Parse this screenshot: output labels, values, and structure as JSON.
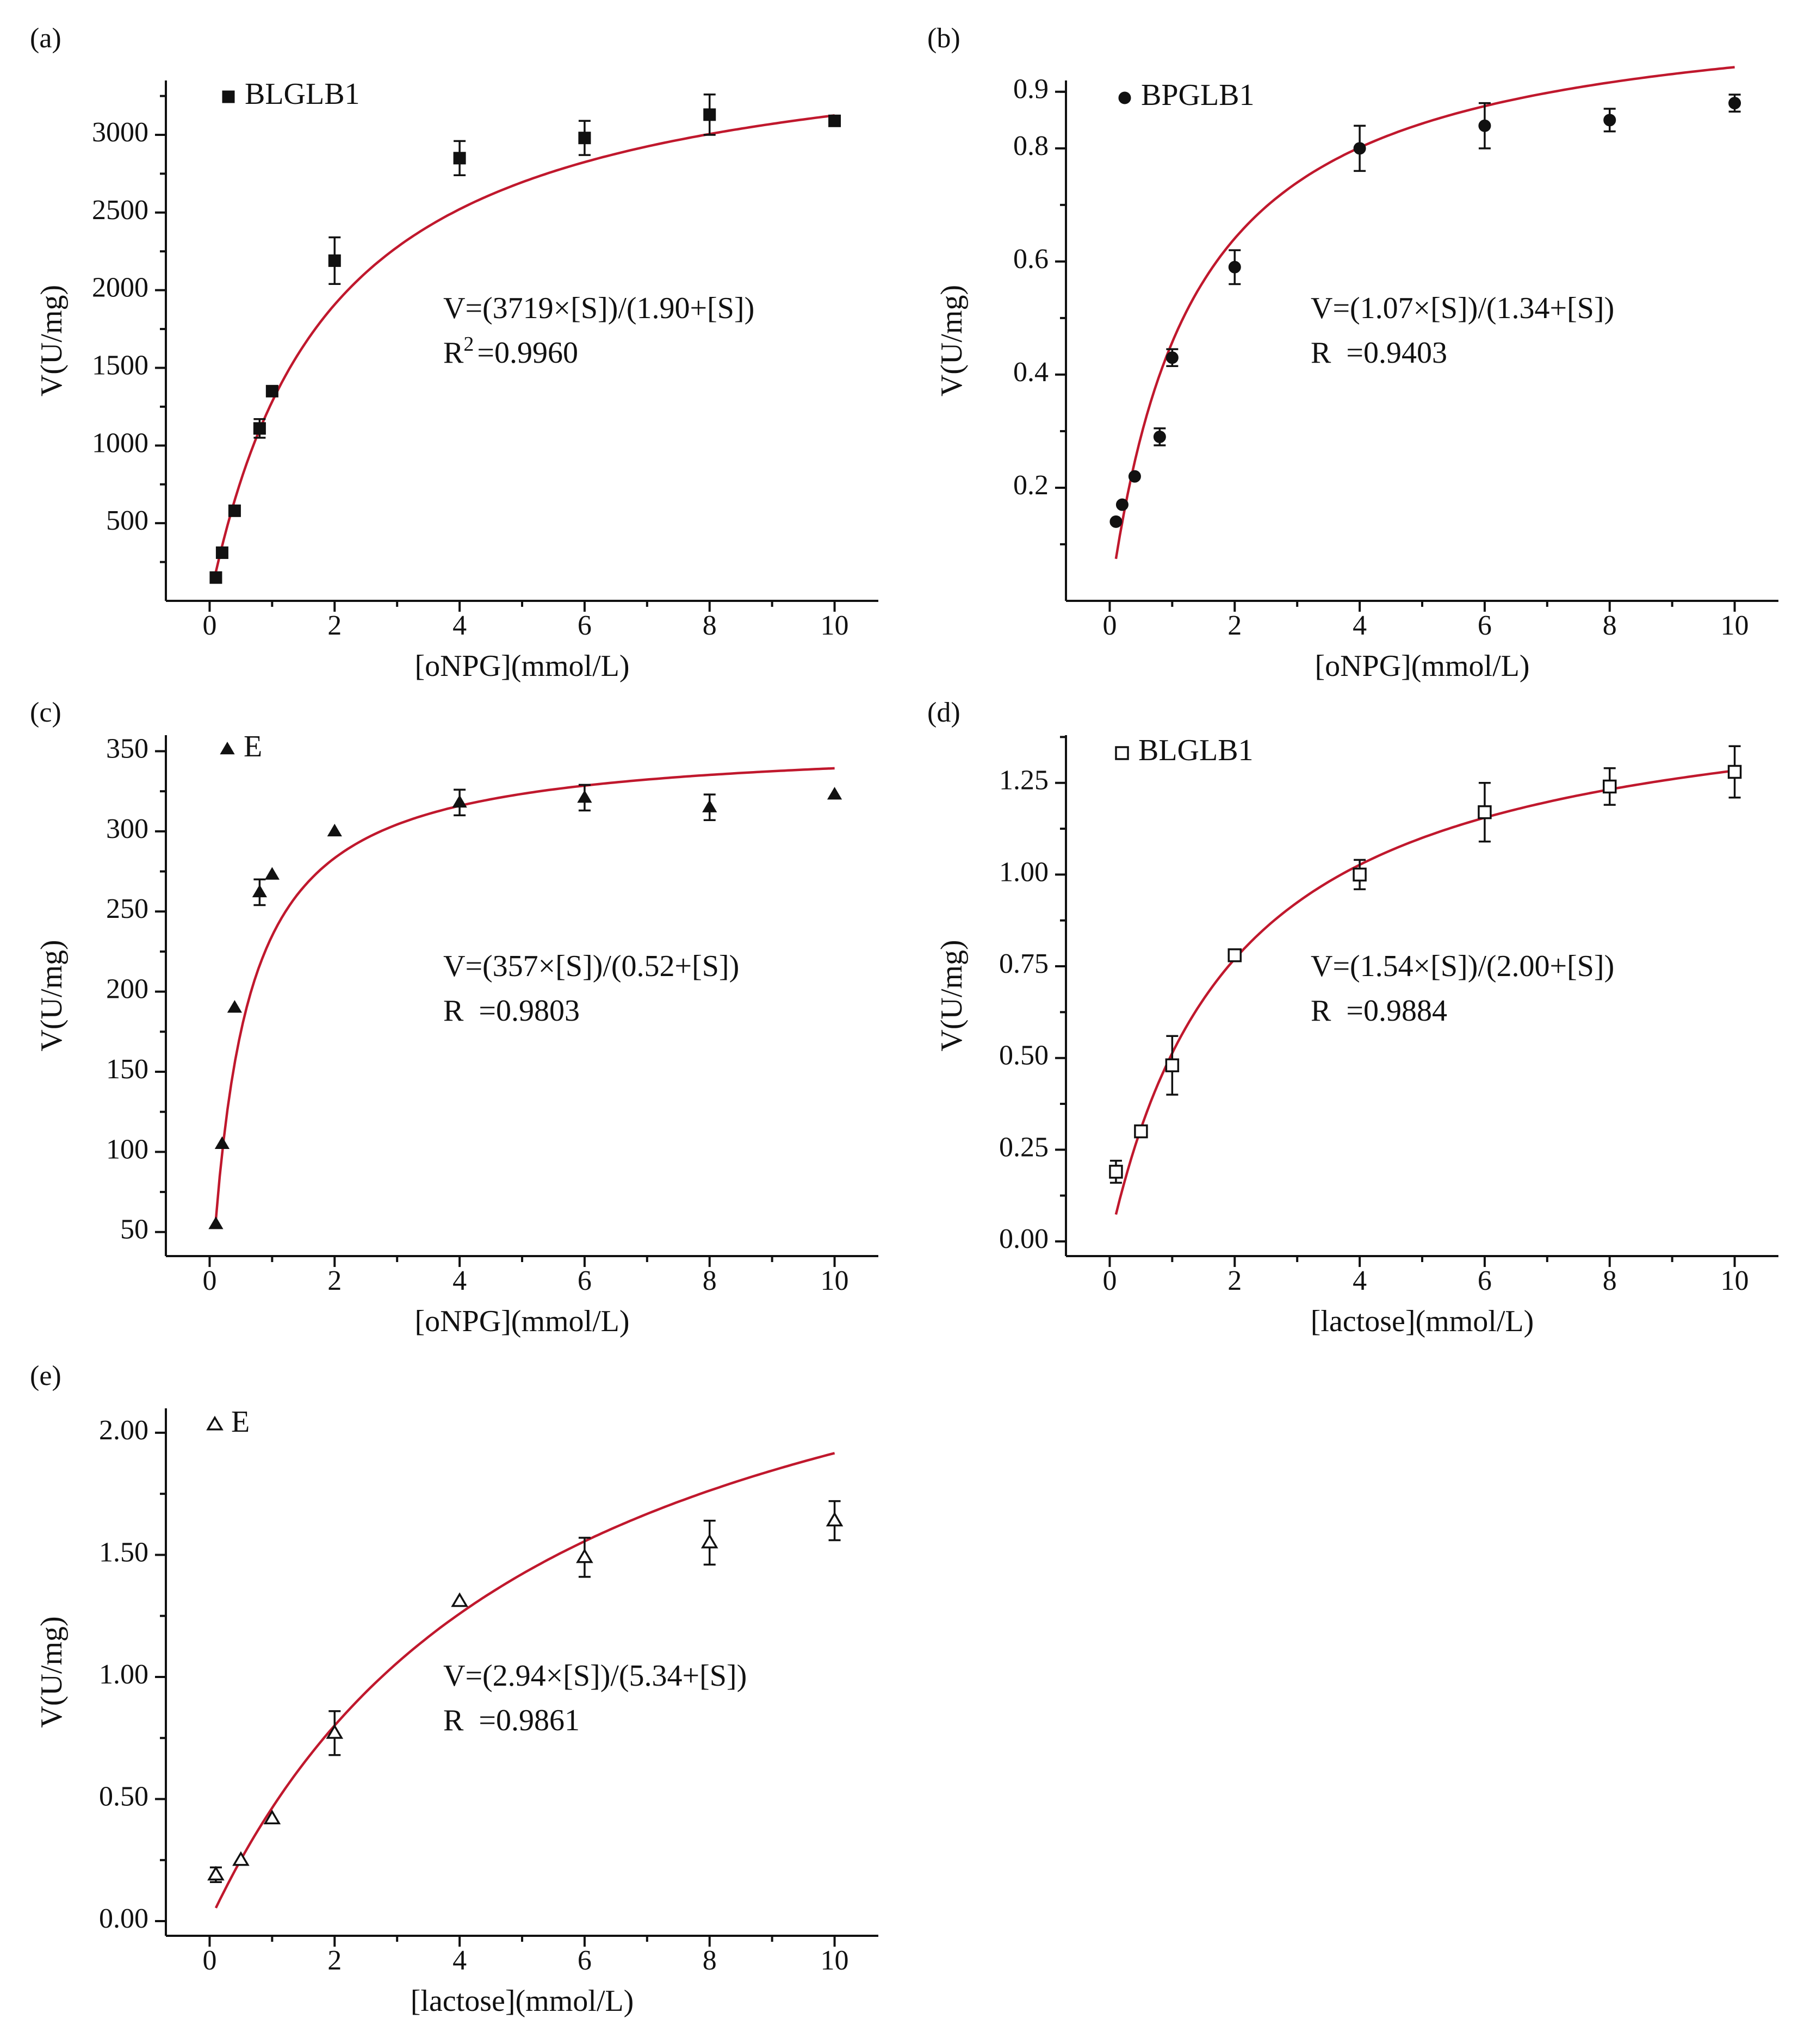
{
  "figure": {
    "background": "#ffffff",
    "ink": "#111111",
    "fit_color": "#c0182d"
  },
  "chart_data": [
    {
      "id": "a",
      "panel_label": "(a)",
      "type": "scatter",
      "title": "",
      "xlabel": "[oNPG](mmol/L)",
      "ylabel": "V(U/mg)",
      "xlim": [
        -0.7,
        10.7
      ],
      "ylim": [
        0,
        3350
      ],
      "xticks": [
        0,
        2,
        4,
        6,
        8,
        10
      ],
      "xtick_labels": [
        "0",
        "2",
        "4",
        "6",
        "8",
        "10"
      ],
      "yticks": [
        500,
        1000,
        1500,
        2000,
        2500,
        3000
      ],
      "ytick_labels": [
        "500",
        "1000",
        "1500",
        "2000",
        "2500",
        "3000"
      ],
      "series": [
        {
          "name": "BLGLB1",
          "marker": "square-filled",
          "x": [
            0.1,
            0.2,
            0.4,
            0.8,
            1,
            2,
            4,
            6,
            8,
            10
          ],
          "y": [
            150,
            310,
            580,
            1110,
            1350,
            2190,
            2850,
            2980,
            3130,
            3090
          ],
          "err": [
            0,
            0,
            0,
            60,
            0,
            150,
            110,
            110,
            130,
            0
          ]
        }
      ],
      "fit": {
        "model": "michaelis-menten",
        "vmax": 3719,
        "km": 1.9,
        "x_range": [
          0.1,
          10
        ]
      },
      "equation": "V=(3719×[S])/(1.90+[S])",
      "r_label": "R",
      "r_sup": "2",
      "r_value": "=0.9960"
    },
    {
      "id": "b",
      "panel_label": "(b)",
      "type": "scatter",
      "title": "",
      "xlabel": "[oNPG](mmol/L)",
      "ylabel": "V(U/mg)",
      "xlim": [
        -0.7,
        10.7
      ],
      "ylim": [
        0,
        0.92
      ],
      "xticks": [
        0,
        2,
        4,
        6,
        8,
        10
      ],
      "xtick_labels": [
        "0",
        "2",
        "4",
        "6",
        "8",
        "10"
      ],
      "yticks": [
        0.2,
        0.4,
        0.6,
        0.8,
        0.9
      ],
      "ytick_labels": [
        "0.2",
        "0.4",
        "0.6",
        "0.8",
        "0.9"
      ],
      "series": [
        {
          "name": "BPGLB1",
          "marker": "circle-filled",
          "x": [
            0.1,
            0.2,
            0.4,
            0.8,
            1,
            2,
            4,
            6,
            8,
            10
          ],
          "y": [
            0.14,
            0.17,
            0.22,
            0.29,
            0.43,
            0.59,
            0.8,
            0.84,
            0.85,
            0.88
          ],
          "err": [
            0,
            0,
            0,
            0.015,
            0.015,
            0.03,
            0.04,
            0.04,
            0.02,
            0.015
          ]
        }
      ],
      "fit": {
        "model": "michaelis-menten",
        "vmax": 1.07,
        "km": 1.34,
        "x_range": [
          0.1,
          10
        ]
      },
      "equation": "V=(1.07×[S])/(1.34+[S])",
      "r_label": "R",
      "r_sup": "",
      "r_value": "=0.9403"
    },
    {
      "id": "c",
      "panel_label": "(c)",
      "type": "scatter",
      "title": "",
      "xlabel": "[oNPG](mmol/L)",
      "ylabel": "V(U/mg)",
      "xlim": [
        -0.7,
        10.7
      ],
      "ylim": [
        35,
        360
      ],
      "xticks": [
        0,
        2,
        4,
        6,
        8,
        10
      ],
      "xtick_labels": [
        "0",
        "2",
        "4",
        "6",
        "8",
        "10"
      ],
      "yticks": [
        50,
        100,
        150,
        200,
        250,
        300,
        350
      ],
      "ytick_labels": [
        "50",
        "100",
        "150",
        "200",
        "250",
        "300",
        "350"
      ],
      "series": [
        {
          "name": "E",
          "marker": "triangle-filled",
          "x": [
            0.1,
            0.2,
            0.4,
            0.8,
            1,
            2,
            4,
            6,
            8,
            10
          ],
          "y": [
            55,
            105,
            190,
            262,
            273,
            300,
            318,
            321,
            315,
            323
          ],
          "err": [
            0,
            0,
            0,
            8,
            0,
            0,
            8,
            8,
            8,
            0
          ]
        }
      ],
      "fit": {
        "model": "michaelis-menten",
        "vmax": 357,
        "km": 0.52,
        "x_range": [
          0.1,
          10
        ]
      },
      "equation": "V=(357×[S])/(0.52+[S])",
      "r_label": "R",
      "r_sup": "",
      "r_value": "=0.9803"
    },
    {
      "id": "d",
      "panel_label": "(d)",
      "type": "scatter",
      "title": "",
      "xlabel": "[lactose](mmol/L)",
      "ylabel": "V(U/mg)",
      "xlim": [
        -0.7,
        10.7
      ],
      "ylim": [
        -0.04,
        1.38
      ],
      "xticks": [
        0,
        2,
        4,
        6,
        8,
        10
      ],
      "xtick_labels": [
        "0",
        "2",
        "4",
        "6",
        "8",
        "10"
      ],
      "yticks": [
        0,
        0.25,
        0.5,
        0.75,
        1.0,
        1.25
      ],
      "ytick_labels": [
        "0.00",
        "0.25",
        "0.50",
        "0.75",
        "1.00",
        "1.25"
      ],
      "series": [
        {
          "name": "BLGLB1",
          "marker": "square-open",
          "x": [
            0.1,
            0.5,
            1,
            2,
            4,
            6,
            8,
            10
          ],
          "y": [
            0.19,
            0.3,
            0.48,
            0.78,
            1.0,
            1.17,
            1.24,
            1.28
          ],
          "err": [
            0.03,
            0,
            0.08,
            0,
            0.04,
            0.08,
            0.05,
            0.07
          ]
        }
      ],
      "fit": {
        "model": "michaelis-menten",
        "vmax": 1.54,
        "km": 2.0,
        "x_range": [
          0.1,
          10
        ]
      },
      "equation": "V=(1.54×[S])/(2.00+[S])",
      "r_label": "R",
      "r_sup": "",
      "r_value": "=0.9884"
    },
    {
      "id": "e",
      "panel_label": "(e)",
      "type": "scatter",
      "title": "",
      "xlabel": "[lactose](mmol/L)",
      "ylabel": "V(U/mg)",
      "xlim": [
        -0.7,
        10.7
      ],
      "ylim": [
        -0.06,
        2.1
      ],
      "xticks": [
        0,
        2,
        4,
        6,
        8,
        10
      ],
      "xtick_labels": [
        "0",
        "2",
        "4",
        "6",
        "8",
        "10"
      ],
      "yticks": [
        0,
        0.5,
        1.0,
        1.5,
        2.0
      ],
      "ytick_labels": [
        "0.00",
        "0.50",
        "1.00",
        "1.50",
        "2.00"
      ],
      "series": [
        {
          "name": "E",
          "marker": "triangle-open",
          "x": [
            0.1,
            0.5,
            1,
            2,
            4,
            6,
            8,
            10
          ],
          "y": [
            0.19,
            0.25,
            0.42,
            0.77,
            1.31,
            1.49,
            1.55,
            1.64
          ],
          "err": [
            0.03,
            0,
            0,
            0.09,
            0,
            0.08,
            0.09,
            0.08
          ]
        }
      ],
      "fit": {
        "model": "michaelis-menten",
        "vmax": 2.94,
        "km": 5.34,
        "x_range": [
          0.1,
          10
        ]
      },
      "equation": "V=(2.94×[S])/(5.34+[S])",
      "r_label": "R",
      "r_sup": "",
      "r_value": "=0.9861"
    }
  ]
}
